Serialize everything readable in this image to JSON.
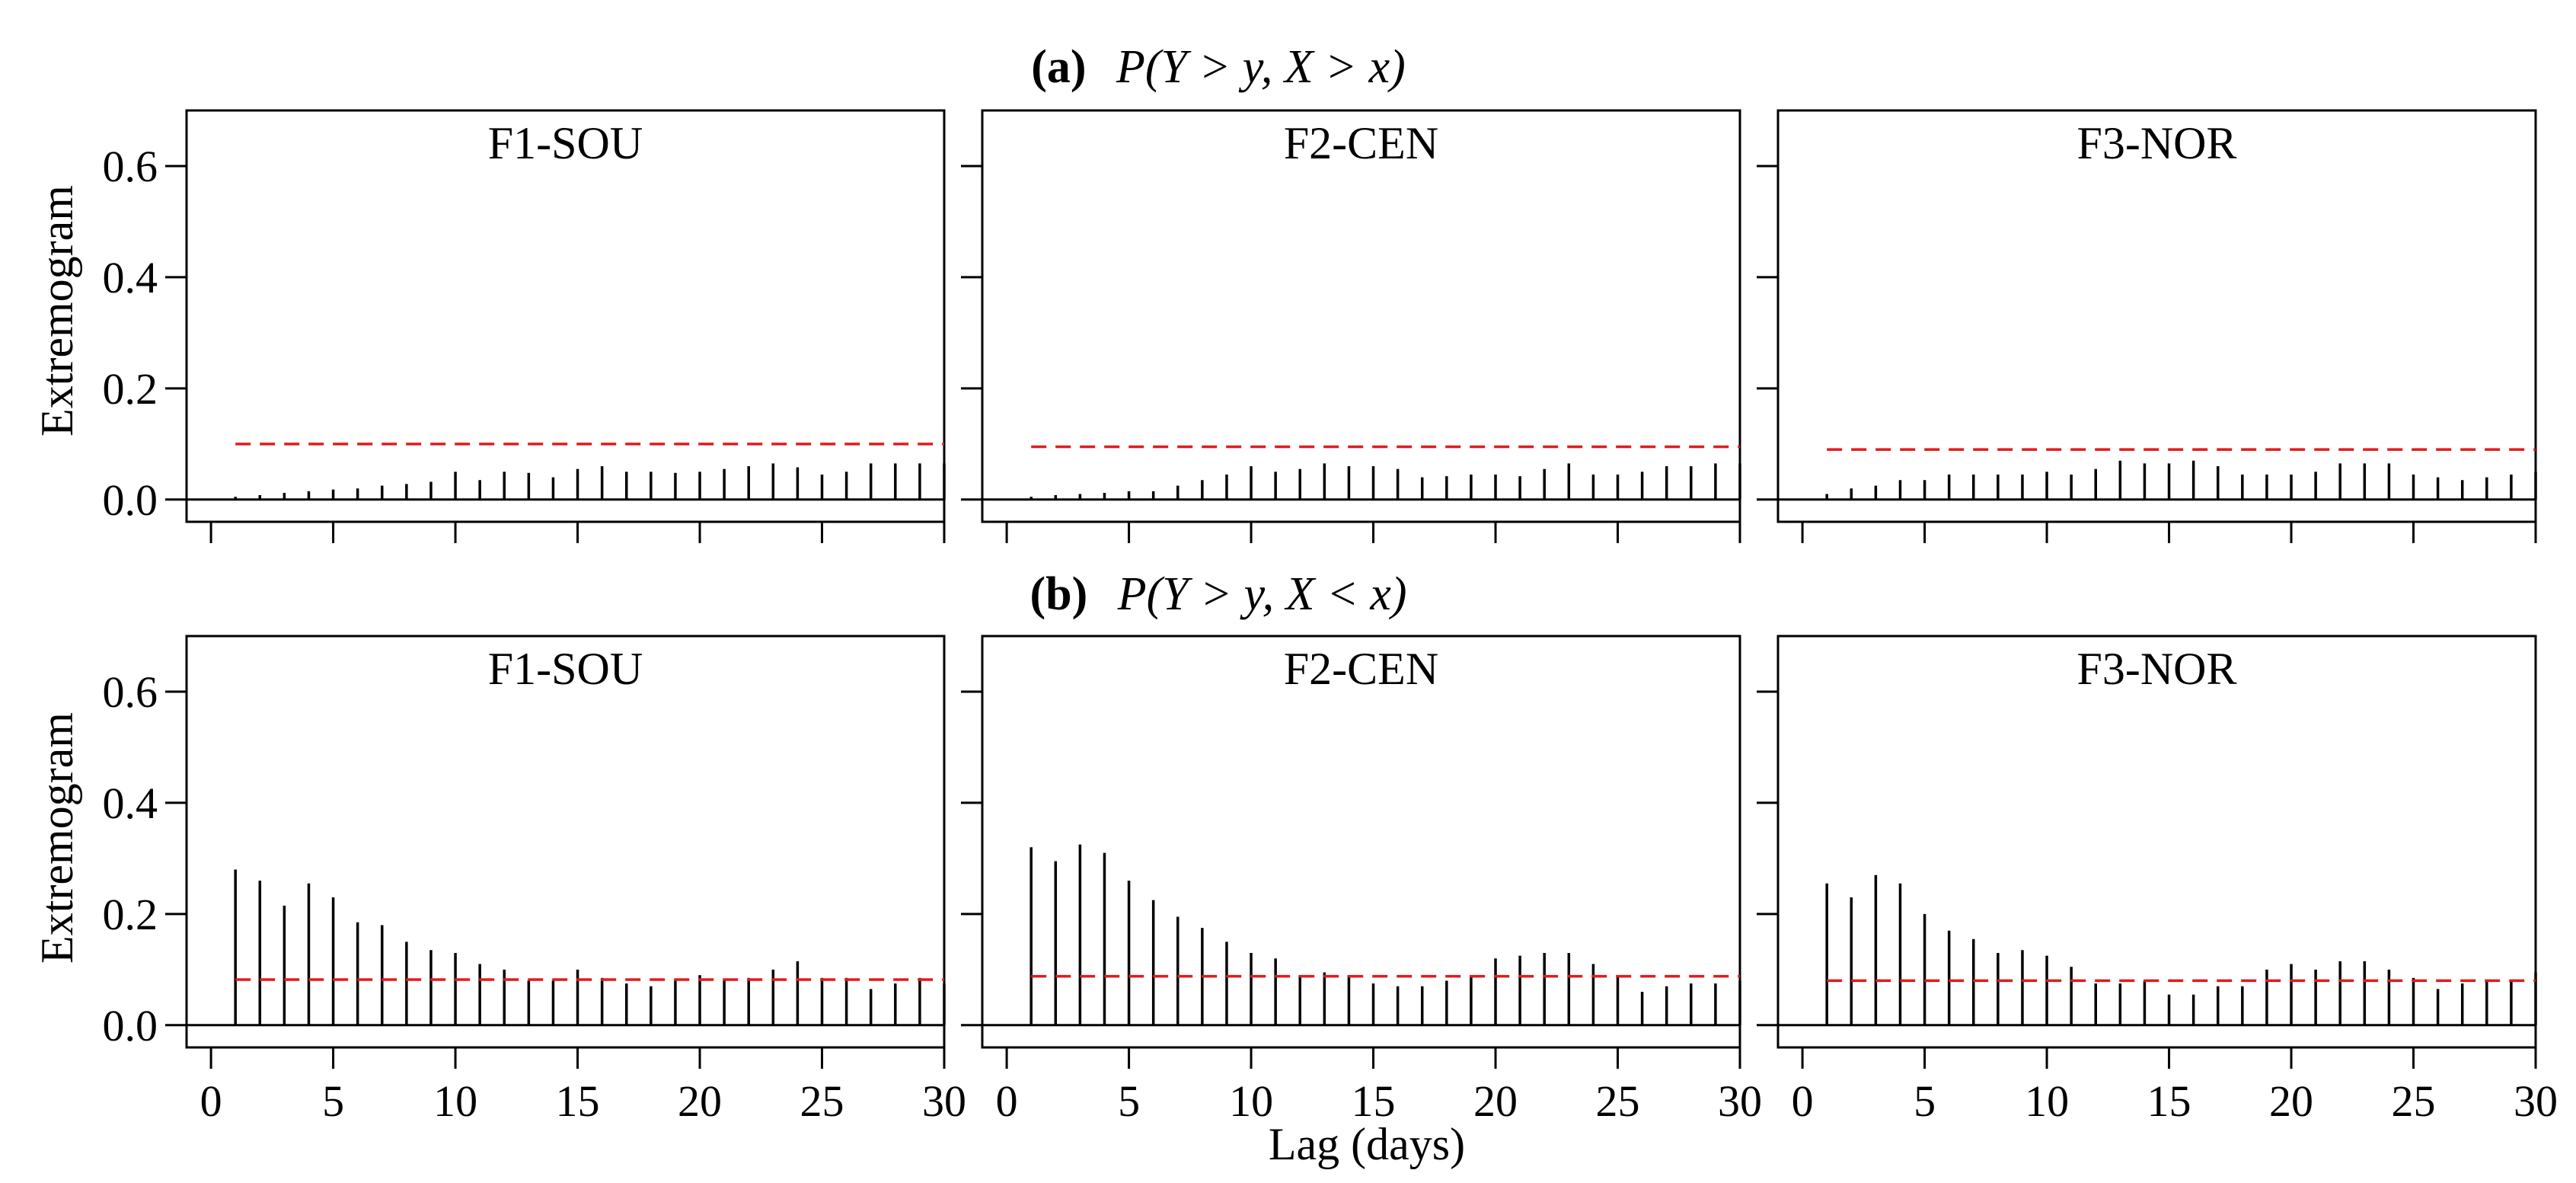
{
  "figure": {
    "x_axis_label": "Lag (days)",
    "y_axis_label": "Extremogram"
  },
  "chart_data": [
    {
      "type": "bar",
      "row": "a",
      "row_label": "(a)",
      "row_formula": "P(Y > y, X > x)",
      "title": "F1-SOU",
      "xlabel": "Lag (days)",
      "ylabel": "Extremogram",
      "xlim": [
        -1,
        30
      ],
      "ylim": [
        -0.04,
        0.7
      ],
      "xticks": [
        0,
        5,
        10,
        15,
        20,
        25,
        30
      ],
      "yticks": [
        0.0,
        0.2,
        0.4,
        0.6
      ],
      "x": [
        1,
        2,
        3,
        4,
        5,
        6,
        7,
        8,
        9,
        10,
        11,
        12,
        13,
        14,
        15,
        16,
        17,
        18,
        19,
        20,
        21,
        22,
        23,
        24,
        25,
        26,
        27,
        28,
        29,
        30
      ],
      "values": [
        0.005,
        0.008,
        0.012,
        0.015,
        0.018,
        0.02,
        0.025,
        0.028,
        0.032,
        0.05,
        0.035,
        0.05,
        0.048,
        0.04,
        0.055,
        0.06,
        0.05,
        0.05,
        0.048,
        0.05,
        0.055,
        0.06,
        0.065,
        0.058,
        0.045,
        0.05,
        0.065,
        0.065,
        0.065,
        0.065
      ],
      "threshold": 0.1,
      "threshold_color": "#e31a1c"
    },
    {
      "type": "bar",
      "row": "a",
      "title": "F2-CEN",
      "xlabel": "Lag (days)",
      "ylabel": "Extremogram",
      "xlim": [
        -1,
        30
      ],
      "ylim": [
        -0.04,
        0.7
      ],
      "xticks": [
        0,
        5,
        10,
        15,
        20,
        25,
        30
      ],
      "yticks": [
        0.0,
        0.2,
        0.4,
        0.6
      ],
      "x": [
        1,
        2,
        3,
        4,
        5,
        6,
        7,
        8,
        9,
        10,
        11,
        12,
        13,
        14,
        15,
        16,
        17,
        18,
        19,
        20,
        21,
        22,
        23,
        24,
        25,
        26,
        27,
        28,
        29,
        30
      ],
      "values": [
        0.005,
        0.008,
        0.01,
        0.012,
        0.015,
        0.015,
        0.025,
        0.035,
        0.045,
        0.06,
        0.05,
        0.055,
        0.065,
        0.06,
        0.06,
        0.055,
        0.04,
        0.042,
        0.045,
        0.045,
        0.042,
        0.055,
        0.065,
        0.045,
        0.045,
        0.05,
        0.06,
        0.06,
        0.065,
        0.065
      ],
      "threshold": 0.095,
      "threshold_color": "#e31a1c"
    },
    {
      "type": "bar",
      "row": "a",
      "title": "F3-NOR",
      "xlabel": "Lag (days)",
      "ylabel": "Extremogram",
      "xlim": [
        -1,
        30
      ],
      "ylim": [
        -0.04,
        0.7
      ],
      "xticks": [
        0,
        5,
        10,
        15,
        20,
        25,
        30
      ],
      "yticks": [
        0.0,
        0.2,
        0.4,
        0.6
      ],
      "x": [
        1,
        2,
        3,
        4,
        5,
        6,
        7,
        8,
        9,
        10,
        11,
        12,
        13,
        14,
        15,
        16,
        17,
        18,
        19,
        20,
        21,
        22,
        23,
        24,
        25,
        26,
        27,
        28,
        29,
        30
      ],
      "values": [
        0.01,
        0.02,
        0.025,
        0.035,
        0.035,
        0.045,
        0.045,
        0.045,
        0.045,
        0.05,
        0.045,
        0.055,
        0.07,
        0.065,
        0.065,
        0.07,
        0.06,
        0.045,
        0.045,
        0.045,
        0.05,
        0.065,
        0.065,
        0.065,
        0.045,
        0.04,
        0.035,
        0.04,
        0.045,
        0.05
      ],
      "threshold": 0.09,
      "threshold_color": "#e31a1c"
    },
    {
      "type": "bar",
      "row": "b",
      "row_label": "(b)",
      "row_formula": "P(Y > y, X < x)",
      "title": "F1-SOU",
      "xlabel": "Lag (days)",
      "ylabel": "Extremogram",
      "xlim": [
        -1,
        30
      ],
      "ylim": [
        -0.04,
        0.7
      ],
      "xticks": [
        0,
        5,
        10,
        15,
        20,
        25,
        30
      ],
      "yticks": [
        0.0,
        0.2,
        0.4,
        0.6
      ],
      "x": [
        1,
        2,
        3,
        4,
        5,
        6,
        7,
        8,
        9,
        10,
        11,
        12,
        13,
        14,
        15,
        16,
        17,
        18,
        19,
        20,
        21,
        22,
        23,
        24,
        25,
        26,
        27,
        28,
        29,
        30
      ],
      "values": [
        0.28,
        0.26,
        0.215,
        0.255,
        0.23,
        0.185,
        0.18,
        0.15,
        0.135,
        0.13,
        0.11,
        0.1,
        0.08,
        0.08,
        0.1,
        0.085,
        0.075,
        0.07,
        0.08,
        0.09,
        0.08,
        0.085,
        0.1,
        0.115,
        0.085,
        0.085,
        0.065,
        0.075,
        0.085,
        0.075
      ],
      "threshold": 0.082,
      "threshold_color": "#e31a1c"
    },
    {
      "type": "bar",
      "row": "b",
      "title": "F2-CEN",
      "xlabel": "Lag (days)",
      "ylabel": "Extremogram",
      "xlim": [
        -1,
        30
      ],
      "ylim": [
        -0.04,
        0.7
      ],
      "xticks": [
        0,
        5,
        10,
        15,
        20,
        25,
        30
      ],
      "yticks": [
        0.0,
        0.2,
        0.4,
        0.6
      ],
      "x": [
        1,
        2,
        3,
        4,
        5,
        6,
        7,
        8,
        9,
        10,
        11,
        12,
        13,
        14,
        15,
        16,
        17,
        18,
        19,
        20,
        21,
        22,
        23,
        24,
        25,
        26,
        27,
        28,
        29,
        30
      ],
      "values": [
        0.32,
        0.295,
        0.325,
        0.31,
        0.26,
        0.225,
        0.195,
        0.175,
        0.15,
        0.13,
        0.12,
        0.09,
        0.095,
        0.09,
        0.075,
        0.07,
        0.07,
        0.08,
        0.09,
        0.12,
        0.125,
        0.13,
        0.13,
        0.11,
        0.09,
        0.06,
        0.07,
        0.075,
        0.075,
        0.08
      ],
      "threshold": 0.088,
      "threshold_color": "#e31a1c"
    },
    {
      "type": "bar",
      "row": "b",
      "title": "F3-NOR",
      "xlabel": "Lag (days)",
      "ylabel": "Extremogram",
      "xlim": [
        -1,
        30
      ],
      "ylim": [
        -0.04,
        0.7
      ],
      "xticks": [
        0,
        5,
        10,
        15,
        20,
        25,
        30
      ],
      "yticks": [
        0.0,
        0.2,
        0.4,
        0.6
      ],
      "x": [
        1,
        2,
        3,
        4,
        5,
        6,
        7,
        8,
        9,
        10,
        11,
        12,
        13,
        14,
        15,
        16,
        17,
        18,
        19,
        20,
        21,
        22,
        23,
        24,
        25,
        26,
        27,
        28,
        29,
        30
      ],
      "values": [
        0.255,
        0.23,
        0.27,
        0.255,
        0.2,
        0.17,
        0.155,
        0.13,
        0.135,
        0.125,
        0.105,
        0.075,
        0.075,
        0.08,
        0.055,
        0.055,
        0.07,
        0.07,
        0.1,
        0.11,
        0.1,
        0.115,
        0.115,
        0.1,
        0.085,
        0.065,
        0.075,
        0.08,
        0.08,
        0.095
      ],
      "threshold": 0.08,
      "threshold_color": "#e31a1c"
    }
  ]
}
